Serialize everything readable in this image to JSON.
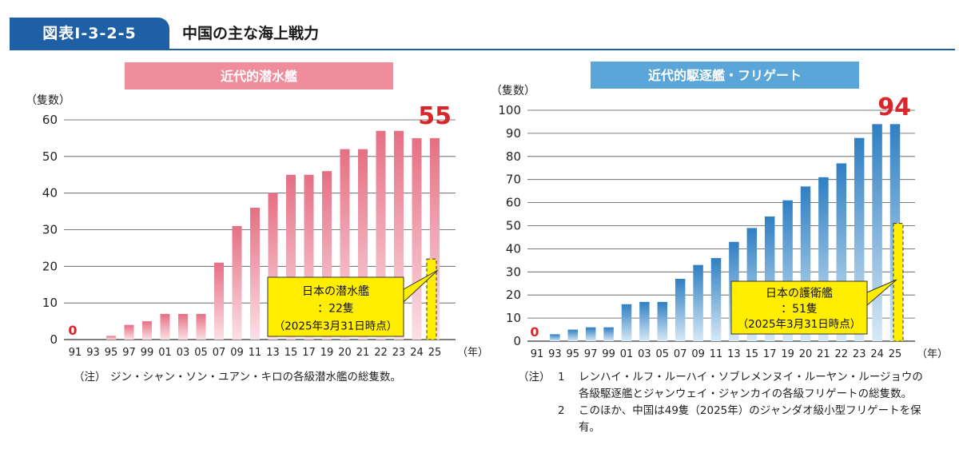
{
  "header": {
    "badge": "図表Ⅰ-3-2-5",
    "title": "中国の主な海上戦力"
  },
  "chart_data": [
    {
      "type": "bar",
      "title": "近代的潜水艦",
      "ylabel": "（隻数）",
      "xlabel": "（年）",
      "ylim": [
        0,
        60
      ],
      "yticks": [
        0,
        10,
        20,
        30,
        40,
        50,
        60
      ],
      "categories": [
        "91",
        "93",
        "95",
        "97",
        "99",
        "01",
        "03",
        "05",
        "07",
        "09",
        "11",
        "13",
        "15",
        "17",
        "19",
        "20",
        "21",
        "22",
        "23",
        "24",
        "25"
      ],
      "values": [
        0,
        0,
        1,
        4,
        5,
        7,
        7,
        7,
        21,
        31,
        36,
        40,
        45,
        45,
        46,
        52,
        52,
        57,
        57,
        55,
        55
      ],
      "zero_label": "0",
      "highlight_label": "55",
      "japan": {
        "value": 22,
        "callout_line1": "日本の潜水艦",
        "callout_line2": "：22隻",
        "callout_line3": "（2025年3月31日時点）"
      },
      "colors": {
        "bar": "#e8778a",
        "title_bg": "#f08d9c",
        "highlight": "#d9262c",
        "japan": "#ffee00"
      }
    },
    {
      "type": "bar",
      "title": "近代的駆逐艦・フリゲート",
      "ylabel": "（隻数）",
      "xlabel": "（年）",
      "ylim": [
        0,
        100
      ],
      "yticks": [
        0,
        10,
        20,
        30,
        40,
        50,
        60,
        70,
        80,
        90,
        100
      ],
      "categories": [
        "91",
        "93",
        "95",
        "97",
        "99",
        "01",
        "03",
        "05",
        "07",
        "09",
        "11",
        "13",
        "15",
        "17",
        "19",
        "20",
        "21",
        "22",
        "23",
        "24",
        "25"
      ],
      "values": [
        0,
        3,
        5,
        6,
        6,
        16,
        17,
        17,
        27,
        33,
        36,
        43,
        49,
        54,
        61,
        67,
        71,
        77,
        88,
        94,
        94
      ],
      "zero_label": "0",
      "highlight_label": "94",
      "japan": {
        "value": 51,
        "callout_line1": "日本の護衛艦",
        "callout_line2": "：51隻",
        "callout_line3": "（2025年3月31日時点）"
      },
      "colors": {
        "bar": "#3d88c8",
        "title_bg": "#5aa6d8",
        "highlight": "#d9262c",
        "japan": "#ffee00"
      }
    }
  ],
  "notes": {
    "left": {
      "label": "（注）",
      "text": "ジン・シャン・ソン・ユアン・キロの各級潜水艦の総隻数。"
    },
    "right": {
      "label": "（注）",
      "items": [
        {
          "num": "1",
          "text": "レンハイ・ルフ・ルーハイ・ソブレメンヌイ・ルーヤン・ルージョウの各級駆逐艦とジャンウェイ・ジャンカイの各級フリゲートの総隻数。"
        },
        {
          "num": "2",
          "text": "このほか、中国は49隻（2025年）のジャンダオ級小型フリゲートを保有。"
        }
      ]
    }
  }
}
